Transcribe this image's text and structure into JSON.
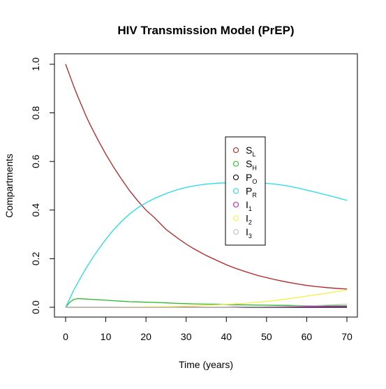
{
  "chart_data": {
    "type": "line",
    "title": "HIV Transmission Model (PrEP)",
    "xlabel": "Time (years)",
    "ylabel": "Compartments",
    "xlim": [
      0,
      70
    ],
    "ylim": [
      0,
      1
    ],
    "xticks": [
      "0",
      "10",
      "20",
      "30",
      "40",
      "50",
      "60",
      "70"
    ],
    "yticks": [
      "0.0",
      "0.2",
      "0.4",
      "0.6",
      "0.8",
      "1.0"
    ],
    "grid": false,
    "legend_position": "center-right",
    "x": [
      0,
      1,
      2,
      3,
      4,
      5,
      6,
      8,
      10,
      12,
      14,
      16,
      18,
      20,
      22,
      25,
      28,
      30,
      32,
      35,
      38,
      40,
      42,
      45,
      48,
      50,
      52,
      55,
      58,
      60,
      62,
      65,
      68,
      70
    ],
    "series": [
      {
        "name": "S",
        "sub": "L",
        "color": "#b22222",
        "values": [
          1.0,
          0.955,
          0.91,
          0.868,
          0.83,
          0.79,
          0.755,
          0.69,
          0.63,
          0.575,
          0.525,
          0.478,
          0.437,
          0.4,
          0.37,
          0.32,
          0.283,
          0.26,
          0.24,
          0.213,
          0.19,
          0.175,
          0.162,
          0.145,
          0.13,
          0.122,
          0.114,
          0.104,
          0.095,
          0.09,
          0.086,
          0.081,
          0.077,
          0.075
        ]
      },
      {
        "name": "S",
        "sub": "H",
        "color": "#2db82d",
        "values": [
          0.0,
          0.02,
          0.032,
          0.036,
          0.035,
          0.034,
          0.033,
          0.031,
          0.029,
          0.027,
          0.025,
          0.023,
          0.022,
          0.021,
          0.02,
          0.018,
          0.016,
          0.015,
          0.014,
          0.013,
          0.012,
          0.011,
          0.011,
          0.01,
          0.009,
          0.009,
          0.008,
          0.008,
          0.007,
          0.007,
          0.007,
          0.006,
          0.006,
          0.006
        ]
      },
      {
        "name": "P",
        "sub": "O",
        "color": "#000000",
        "values": [
          0.0,
          0.0,
          0.0,
          0.0,
          0.0,
          0.0,
          0.0,
          0.0,
          0.0,
          0.0,
          0.0,
          0.0,
          0.0,
          0.0,
          0.0,
          0.0,
          0.0,
          0.0,
          0.0,
          0.0,
          0.0,
          0.0,
          0.0,
          0.0,
          0.0,
          0.0,
          0.0,
          0.0,
          0.0,
          0.0,
          0.0,
          0.0,
          0.0,
          0.0
        ]
      },
      {
        "name": "P",
        "sub": "R",
        "color": "#22dde6",
        "values": [
          0.0,
          0.035,
          0.07,
          0.1,
          0.13,
          0.158,
          0.185,
          0.235,
          0.28,
          0.32,
          0.355,
          0.385,
          0.41,
          0.43,
          0.447,
          0.468,
          0.485,
          0.493,
          0.5,
          0.507,
          0.511,
          0.512,
          0.513,
          0.513,
          0.512,
          0.51,
          0.507,
          0.5,
          0.49,
          0.482,
          0.474,
          0.462,
          0.449,
          0.44
        ]
      },
      {
        "name": "I",
        "sub": "1",
        "color": "#c020c0",
        "values": [
          0.0,
          0.0,
          0.0,
          0.0,
          0.0,
          0.0,
          0.0,
          0.0,
          0.0,
          0.0,
          0.0,
          0.0,
          0.0,
          0.0,
          0.0,
          0.0,
          0.001,
          0.001,
          0.001,
          0.001,
          0.001,
          0.001,
          0.002,
          0.002,
          0.002,
          0.002,
          0.002,
          0.002,
          0.003,
          0.003,
          0.003,
          0.003,
          0.003,
          0.003
        ]
      },
      {
        "name": "I",
        "sub": "2",
        "color": "#f2f24a",
        "values": [
          0.0,
          0.0,
          0.0,
          0.0,
          0.0,
          0.0,
          0.0,
          0.0,
          0.0,
          0.0,
          0.001,
          0.001,
          0.001,
          0.002,
          0.002,
          0.003,
          0.004,
          0.005,
          0.006,
          0.008,
          0.01,
          0.012,
          0.014,
          0.017,
          0.021,
          0.024,
          0.028,
          0.034,
          0.041,
          0.046,
          0.051,
          0.058,
          0.066,
          0.071
        ]
      },
      {
        "name": "I",
        "sub": "3",
        "color": "#bebebe",
        "values": [
          0.0,
          0.0,
          0.0,
          0.0,
          0.0,
          0.0,
          0.0,
          0.0,
          0.0,
          0.0,
          0.0,
          0.0,
          0.0,
          0.0,
          0.0,
          0.0,
          0.0,
          0.0,
          0.0,
          0.001,
          0.001,
          0.001,
          0.001,
          0.002,
          0.002,
          0.003,
          0.003,
          0.004,
          0.005,
          0.006,
          0.007,
          0.009,
          0.011,
          0.013
        ]
      }
    ]
  }
}
